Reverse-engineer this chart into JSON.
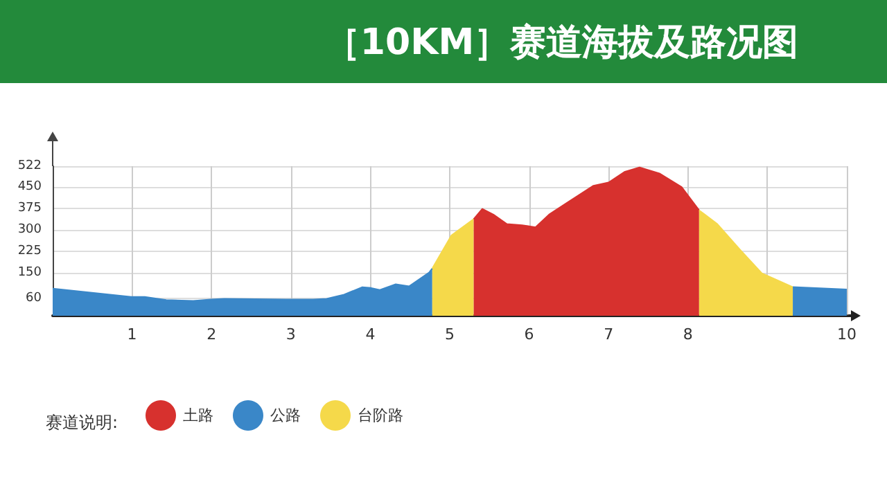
{
  "chart_data": {
    "type": "area",
    "title": "［10KM］赛道海拔及路况图",
    "legend_title": "赛道说明:",
    "legend": "bottom left",
    "grid": true,
    "marker": "none",
    "xlim": [
      0,
      10
    ],
    "xticks": [
      1,
      2,
      3,
      4,
      5,
      6,
      7,
      8,
      {
        "value": 9,
        "label": null
      },
      10
    ],
    "ylim": [
      0,
      522
    ],
    "yticks": [
      60,
      150,
      225,
      300,
      375,
      450,
      522
    ],
    "series": [
      {
        "name": "土路",
        "color": "#d7312e",
        "x": [
          5.3,
          5.41,
          5.55,
          5.72,
          5.91,
          6.08,
          6.25,
          6.47,
          6.81,
          7.0,
          7.2,
          7.39,
          7.64,
          7.92,
          8.14
        ],
        "values": [
          337,
          373,
          353,
          320,
          316,
          309,
          353,
          393,
          454,
          465,
          502,
          518,
          497,
          449,
          368
        ]
      },
      {
        "name": "公路",
        "color": "#3a87c8",
        "x": [
          0,
          0.99,
          1.16,
          1.43,
          1.77,
          1.99,
          2.16,
          2.94,
          3.28,
          3.45,
          3.67,
          3.9,
          4.01,
          4.12,
          4.32,
          4.49,
          4.74,
          4.78
        ],
        "values": [
          95,
          66,
          66,
          55,
          52,
          57,
          59,
          57,
          57,
          59,
          74,
          100,
          97,
          90,
          110,
          103,
          151,
          165
        ]
      },
      {
        "name": "台阶路",
        "color": "#f5d94a",
        "x": [
          4.78,
          5.02,
          5.3
        ],
        "values": [
          165,
          280,
          337
        ]
      },
      {
        "color": "#f5d94a",
        "x": [
          8.14,
          8.37,
          8.65,
          8.93,
          9.32
        ],
        "values": [
          368,
          320,
          232,
          148,
          100
        ]
      },
      {
        "color": "#3a87c8",
        "x": [
          9.32,
          10
        ],
        "values": [
          100,
          92
        ]
      }
    ]
  }
}
